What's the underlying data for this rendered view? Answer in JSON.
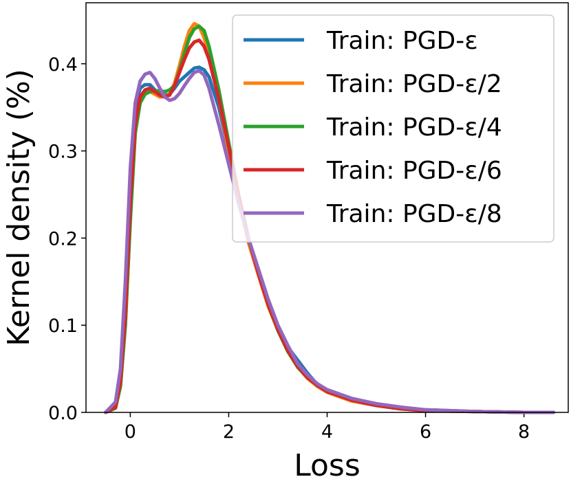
{
  "chart_data": {
    "type": "line",
    "title": "",
    "xlabel": "Loss",
    "ylabel": "Kernel density (%)",
    "xlim": [
      -0.9,
      8.9
    ],
    "ylim": [
      0.0,
      0.47
    ],
    "xticks": [
      0,
      2,
      4,
      6,
      8
    ],
    "yticks": [
      0.0,
      0.1,
      0.2,
      0.3,
      0.4
    ],
    "xtick_labels": [
      "0",
      "2",
      "4",
      "6",
      "8"
    ],
    "ytick_labels": [
      "0.0",
      "0.1",
      "0.2",
      "0.3",
      "0.4"
    ],
    "grid": false,
    "legend_position": "top-right",
    "x": [
      -0.5,
      -0.3,
      -0.2,
      -0.1,
      0.0,
      0.1,
      0.2,
      0.3,
      0.4,
      0.5,
      0.6,
      0.7,
      0.8,
      0.9,
      1.0,
      1.1,
      1.2,
      1.3,
      1.4,
      1.5,
      1.6,
      1.8,
      2.0,
      2.2,
      2.4,
      2.6,
      2.8,
      3.0,
      3.2,
      3.4,
      3.6,
      3.8,
      4.0,
      4.5,
      5.0,
      5.5,
      6.0,
      7.0,
      8.0,
      8.6
    ],
    "series": [
      {
        "name": "Train: PGD-ε",
        "color": "#1f77b4",
        "values": [
          0.0,
          0.008,
          0.04,
          0.12,
          0.25,
          0.35,
          0.372,
          0.376,
          0.376,
          0.37,
          0.366,
          0.364,
          0.365,
          0.372,
          0.38,
          0.385,
          0.39,
          0.395,
          0.396,
          0.393,
          0.385,
          0.35,
          0.3,
          0.25,
          0.2,
          0.163,
          0.128,
          0.098,
          0.075,
          0.06,
          0.045,
          0.032,
          0.026,
          0.016,
          0.009,
          0.005,
          0.003,
          0.001,
          0.0,
          0.0
        ]
      },
      {
        "name": "Train: PGD-ε/2",
        "color": "#ff7f0e",
        "values": [
          0.0,
          0.005,
          0.03,
          0.1,
          0.22,
          0.32,
          0.36,
          0.368,
          0.368,
          0.365,
          0.362,
          0.362,
          0.365,
          0.378,
          0.398,
          0.42,
          0.438,
          0.446,
          0.443,
          0.43,
          0.41,
          0.36,
          0.3,
          0.245,
          0.195,
          0.158,
          0.122,
          0.094,
          0.07,
          0.052,
          0.039,
          0.03,
          0.023,
          0.013,
          0.008,
          0.004,
          0.002,
          0.001,
          0.0,
          0.0
        ]
      },
      {
        "name": "Train: PGD-ε/4",
        "color": "#2ca02c",
        "values": [
          0.0,
          0.005,
          0.03,
          0.1,
          0.22,
          0.32,
          0.355,
          0.365,
          0.368,
          0.369,
          0.369,
          0.368,
          0.37,
          0.375,
          0.392,
          0.412,
          0.43,
          0.44,
          0.443,
          0.438,
          0.42,
          0.37,
          0.31,
          0.25,
          0.2,
          0.16,
          0.124,
          0.094,
          0.07,
          0.052,
          0.04,
          0.031,
          0.024,
          0.014,
          0.008,
          0.004,
          0.002,
          0.001,
          0.0,
          0.0
        ]
      },
      {
        "name": "Train: PGD-ε/6",
        "color": "#d62728",
        "values": [
          0.0,
          0.006,
          0.035,
          0.11,
          0.24,
          0.33,
          0.362,
          0.37,
          0.372,
          0.368,
          0.364,
          0.362,
          0.364,
          0.375,
          0.39,
          0.405,
          0.418,
          0.425,
          0.427,
          0.42,
          0.405,
          0.36,
          0.305,
          0.25,
          0.2,
          0.16,
          0.124,
          0.095,
          0.071,
          0.053,
          0.04,
          0.031,
          0.024,
          0.014,
          0.008,
          0.004,
          0.002,
          0.001,
          0.0,
          0.0
        ]
      },
      {
        "name": "Train: PGD-ε/8",
        "color": "#9467bd",
        "values": [
          0.0,
          0.012,
          0.05,
          0.15,
          0.28,
          0.355,
          0.38,
          0.388,
          0.39,
          0.383,
          0.372,
          0.362,
          0.358,
          0.36,
          0.366,
          0.375,
          0.383,
          0.39,
          0.392,
          0.387,
          0.372,
          0.33,
          0.285,
          0.24,
          0.2,
          0.165,
          0.13,
          0.1,
          0.077,
          0.056,
          0.043,
          0.033,
          0.026,
          0.016,
          0.01,
          0.006,
          0.003,
          0.001,
          0.0,
          0.0
        ]
      }
    ]
  }
}
